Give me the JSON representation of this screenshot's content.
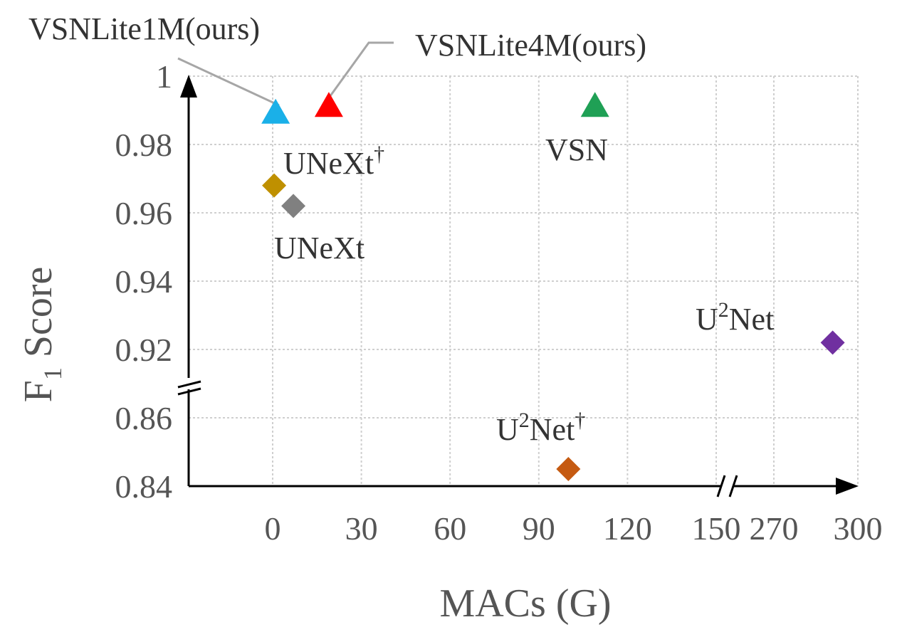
{
  "chart_data": {
    "type": "scatter",
    "xlabel": "MACs (G)",
    "ylabel": "F1 Score",
    "ylabel_base": "F",
    "ylabel_sub": "1",
    "ylabel_rest": " Score",
    "x_ticks": [
      "0",
      "30",
      "60",
      "90",
      "120",
      "150",
      "270",
      "300"
    ],
    "y_ticks": [
      "0.84",
      "0.86",
      "0.92",
      "0.94",
      "0.96",
      "0.98",
      "1"
    ],
    "x_segments": [
      [
        0,
        150
      ],
      [
        270,
        300
      ]
    ],
    "y_segments": [
      [
        0.84,
        0.86
      ],
      [
        0.92,
        1.0
      ]
    ],
    "x_axis_break": true,
    "y_axis_break": true,
    "grid": true,
    "points": [
      {
        "name": "VSNLite1M(ours)",
        "label": "VSNLite1M(ours)",
        "sup": "",
        "x": 1,
        "y": 0.989,
        "marker": "triangle",
        "color": "#1ab0e8"
      },
      {
        "name": "VSNLite4M(ours)",
        "label": "VSNLite4M(ours)",
        "sup": "",
        "x": 19,
        "y": 0.991,
        "marker": "triangle",
        "color": "#ff0000"
      },
      {
        "name": "VSN",
        "label": "VSN",
        "sup": "",
        "x": 109,
        "y": 0.991,
        "marker": "triangle",
        "color": "#1fa055"
      },
      {
        "name": "UNeXt†",
        "label": "UNeXt",
        "sup": "†",
        "x": 0.5,
        "y": 0.968,
        "marker": "diamond",
        "color": "#bf9000"
      },
      {
        "name": "UNeXt",
        "label": "UNeXt",
        "sup": "",
        "x": 7,
        "y": 0.962,
        "marker": "diamond",
        "color": "#808080"
      },
      {
        "name": "U2Net",
        "label": "U",
        "sup": "2",
        "label_tail": "Net",
        "x": 291,
        "y": 0.922,
        "marker": "diamond",
        "color": "#7030a0"
      },
      {
        "name": "U2Net†",
        "label": "U",
        "sup": "2",
        "label_tail": "Net†",
        "x": 100,
        "y": 0.845,
        "marker": "diamond",
        "color": "#c55a11"
      }
    ]
  }
}
